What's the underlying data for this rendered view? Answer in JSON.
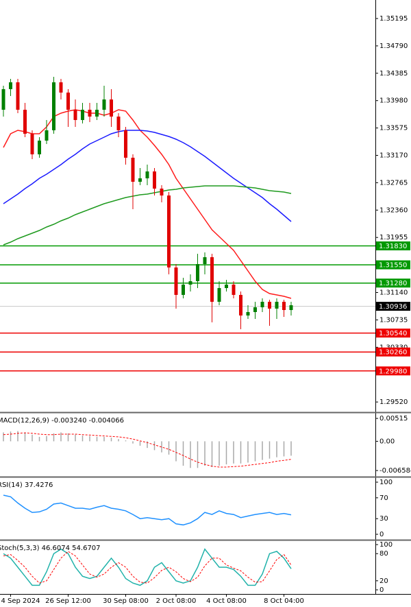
{
  "chart_data": [
    {
      "type": "candlestick",
      "categories": [
        null,
        "4 Sep 2024",
        null,
        null,
        null,
        null,
        null,
        null,
        null,
        "26 Sep 12:00",
        null,
        null,
        null,
        null,
        null,
        null,
        null,
        "30 Sep 08:00",
        null,
        null,
        null,
        null,
        null,
        null,
        "2 Oct 08:00",
        null,
        null,
        null,
        null,
        null,
        null,
        "4 Oct 08:00",
        null,
        null,
        null,
        null,
        null,
        null,
        null,
        "8 Oct 04:00",
        null
      ],
      "open": [
        1.33845,
        1.3415,
        1.34251,
        1.33845,
        1.3349,
        1.33185,
        1.33388,
        1.33541,
        1.34251,
        1.34099,
        1.33845,
        1.33693,
        1.33845,
        1.33744,
        1.33845,
        1.33997,
        1.33744,
        1.33541,
        1.33135,
        1.32779,
        1.3283,
        1.32932,
        1.32678,
        1.32576,
        1.31511,
        1.31105,
        1.31257,
        1.31308,
        1.31561,
        1.31663,
        1.31003,
        1.31206,
        1.31257,
        1.31105,
        1.308,
        1.30851,
        1.30922,
        1.31003,
        1.30902,
        1.31003,
        1.30881
      ],
      "high": [
        1.342,
        1.34302,
        1.34302,
        1.33947,
        1.33541,
        1.33439,
        1.33693,
        1.34332,
        1.34302,
        1.3415,
        1.33997,
        1.33947,
        1.33947,
        1.33947,
        1.342,
        1.3415,
        1.33794,
        1.33591,
        1.33185,
        1.32982,
        1.33033,
        1.32982,
        1.32729,
        1.32627,
        1.31561,
        1.31358,
        1.31409,
        1.31714,
        1.31734,
        1.31714,
        1.31308,
        1.31328,
        1.31308,
        1.31155,
        1.30952,
        1.31003,
        1.31054,
        1.31034,
        1.31054,
        1.31034,
        1.31003
      ],
      "low": [
        1.33744,
        1.34048,
        1.33794,
        1.33439,
        1.33114,
        1.33135,
        1.33338,
        1.3349,
        1.33997,
        1.33591,
        1.33591,
        1.33642,
        1.33662,
        1.33693,
        1.33744,
        1.33591,
        1.33439,
        1.33033,
        1.32373,
        1.32729,
        1.32729,
        1.32576,
        1.32475,
        1.31409,
        1.30902,
        1.31054,
        1.31155,
        1.31206,
        1.31409,
        1.30699,
        1.30952,
        1.31155,
        1.31054,
        1.30597,
        1.30749,
        1.30749,
        1.30851,
        1.30648,
        1.30749,
        1.3078,
        1.308
      ],
      "close": [
        1.3415,
        1.34251,
        1.33845,
        1.3349,
        1.33185,
        1.33388,
        1.33541,
        1.34251,
        1.34099,
        1.33845,
        1.33693,
        1.33845,
        1.33744,
        1.33845,
        1.33997,
        1.33744,
        1.33541,
        1.33135,
        1.32779,
        1.3283,
        1.32932,
        1.32678,
        1.32576,
        1.31511,
        1.31105,
        1.31257,
        1.31308,
        1.31561,
        1.31663,
        1.31003,
        1.31206,
        1.31257,
        1.31105,
        1.308,
        1.30851,
        1.30922,
        1.31003,
        1.30902,
        1.31003,
        1.30881,
        1.30952
      ],
      "up_color": "#008000",
      "down_color": "#e00000",
      "series": [
        {
          "color": "#ff1a1a",
          "values": [
            1.33287,
            1.3349,
            1.33541,
            1.3352,
            1.3349,
            1.3349,
            1.33591,
            1.33744,
            1.33794,
            1.33825,
            1.33845,
            1.33825,
            1.33794,
            1.33794,
            1.33764,
            1.33794,
            1.33845,
            1.33825,
            1.33693,
            1.33541,
            1.33439,
            1.33317,
            1.33185,
            1.33033,
            1.3283,
            1.32678,
            1.32526,
            1.32373,
            1.32221,
            1.32069,
            1.31967,
            1.31866,
            1.31764,
            1.31612,
            1.3146,
            1.31308,
            1.31186,
            1.31125,
            1.31105,
            1.31084,
            1.31054
          ]
        },
        {
          "color": "#1a1aff",
          "values": [
            1.32454,
            1.32526,
            1.32597,
            1.32678,
            1.32749,
            1.3283,
            1.32891,
            1.32962,
            1.33033,
            1.33114,
            1.33185,
            1.33266,
            1.33338,
            1.33388,
            1.33439,
            1.3349,
            1.3352,
            1.33541,
            1.33541,
            1.33541,
            1.3353,
            1.3351,
            1.3348,
            1.33449,
            1.33409,
            1.33358,
            1.33297,
            1.33226,
            1.33155,
            1.33074,
            1.32992,
            1.32911,
            1.3283,
            1.32759,
            1.32688,
            1.32617,
            1.32546,
            1.32454,
            1.32373,
            1.32282,
            1.32191
          ]
        },
        {
          "color": "#1e9a1e",
          "values": [
            1.31845,
            1.31886,
            1.31937,
            1.31977,
            1.32018,
            1.32059,
            1.32109,
            1.3215,
            1.32201,
            1.32241,
            1.32292,
            1.32333,
            1.32373,
            1.32414,
            1.32454,
            1.32485,
            1.32515,
            1.32546,
            1.32566,
            1.32586,
            1.32597,
            1.32617,
            1.32637,
            1.32657,
            1.32668,
            1.32688,
            1.32698,
            1.32708,
            1.32718,
            1.32718,
            1.32718,
            1.32718,
            1.32718,
            1.32708,
            1.32698,
            1.32688,
            1.32668,
            1.32647,
            1.32637,
            1.32627,
            1.32606
          ]
        }
      ],
      "levels": [
        {
          "value": 1.3183,
          "label": "1.31830",
          "color": "#009900"
        },
        {
          "value": 1.3155,
          "label": "1.31550",
          "color": "#009900"
        },
        {
          "value": 1.3128,
          "label": "1.31280",
          "color": "#009900"
        },
        {
          "value": 1.3054,
          "label": "1.30540",
          "color": "#ee0000"
        },
        {
          "value": 1.3026,
          "label": "1.30260",
          "color": "#ee0000"
        },
        {
          "value": 1.2998,
          "label": "1.29980",
          "color": "#ee0000"
        }
      ],
      "last_price": 1.30936,
      "ylim": [
        1.29379,
        1.35469
      ],
      "yticks": [
        1.35195,
        {
          "value": 1.3479,
          "label": "1.34790"
        },
        1.34385,
        {
          "value": 1.3398,
          "label": "1.33980"
        },
        1.33575,
        {
          "value": 1.3317,
          "label": "1.33170"
        },
        1.32765,
        {
          "value": 1.3236,
          "label": "1.32360"
        },
        1.31955,
        {
          "value": 1.3114,
          "label": "1.31140"
        },
        1.30735,
        {
          "value": 1.3033,
          "label": "1.30330"
        },
        {
          "value": 1.2952,
          "label": "1.29520"
        }
      ]
    },
    {
      "type": "macd",
      "label": "MACD(12,26,9) -0.003240 -0.004066",
      "color": "#a8a8a8",
      "values": [
        0.002,
        0.0022,
        0.0023,
        0.002,
        0.0015,
        0.001,
        0.0012,
        0.0018,
        0.002,
        0.0018,
        0.0015,
        0.0013,
        0.0012,
        0.001,
        0.001,
        0.0008,
        0.0005,
        0.0002,
        -0.0005,
        -0.001,
        -0.0015,
        -0.002,
        -0.0025,
        -0.003,
        -0.0045,
        -0.0055,
        -0.006,
        -0.006,
        -0.0055,
        -0.0058,
        -0.0055,
        -0.0052,
        -0.005,
        -0.005,
        -0.0048,
        -0.0045,
        -0.0042,
        -0.0039,
        -0.0036,
        -0.0034,
        -0.00324
      ],
      "series": [
        {
          "color": "#ff0000",
          "dashed": true,
          "values": [
            0.0015,
            0.0016,
            0.0018,
            0.0019,
            0.0018,
            0.0016,
            0.0015,
            0.0015,
            0.0016,
            0.0016,
            0.0016,
            0.0015,
            0.0014,
            0.0013,
            0.0012,
            0.0011,
            0.001,
            0.0008,
            0.0005,
            0.0001,
            -0.0003,
            -0.0008,
            -0.0013,
            -0.0018,
            -0.0025,
            -0.0032,
            -0.004,
            -0.0047,
            -0.0052,
            -0.0056,
            -0.0058,
            -0.0058,
            -0.0057,
            -0.0056,
            -0.0054,
            -0.0052,
            -0.005,
            -0.0048,
            -0.0045,
            -0.0043,
            -0.004066
          ]
        }
      ],
      "ylim": [
        -0.00766,
        0.00624
      ],
      "yticks": [
        0.00515,
        {
          "value": 0,
          "label": "0.00"
        },
        -0.006584
      ]
    },
    {
      "type": "line",
      "label": "RSI(14) 37.4276",
      "series": [
        {
          "color": "#1e90ff",
          "values": [
            75,
            72,
            60,
            50,
            42,
            43,
            48,
            58,
            60,
            55,
            50,
            50,
            48,
            52,
            55,
            50,
            48,
            45,
            38,
            30,
            32,
            30,
            28,
            30,
            20,
            18,
            22,
            30,
            42,
            38,
            45,
            40,
            38,
            32,
            35,
            38,
            40,
            42,
            38,
            40,
            37.4276
          ]
        }
      ],
      "ylim": [
        -9.2,
        107.9
      ],
      "yticks": [
        100,
        70,
        30,
        0
      ]
    },
    {
      "type": "line",
      "label": "Stoch(5,3,3) 46.6074 54.6707",
      "series": [
        {
          "color": "#20b2aa",
          "values": [
            80,
            70,
            50,
            30,
            10,
            10,
            40,
            80,
            90,
            80,
            50,
            30,
            25,
            30,
            50,
            70,
            50,
            25,
            15,
            10,
            20,
            50,
            60,
            40,
            20,
            15,
            20,
            50,
            90,
            70,
            50,
            50,
            45,
            30,
            10,
            10,
            35,
            80,
            85,
            70,
            46.6074
          ]
        },
        {
          "color": "#ff0000",
          "dashed": true,
          "values": [
            75,
            78,
            65,
            50,
            30,
            15,
            20,
            45,
            70,
            85,
            75,
            55,
            35,
            28,
            35,
            50,
            60,
            50,
            30,
            17,
            15,
            27,
            43,
            50,
            40,
            25,
            18,
            28,
            53,
            70,
            70,
            55,
            48,
            42,
            28,
            17,
            18,
            42,
            67,
            78,
            54.6707
          ]
        }
      ],
      "ylim": [
        -7.6,
        107.6
      ],
      "yticks": [
        100,
        80,
        20,
        0
      ]
    }
  ]
}
